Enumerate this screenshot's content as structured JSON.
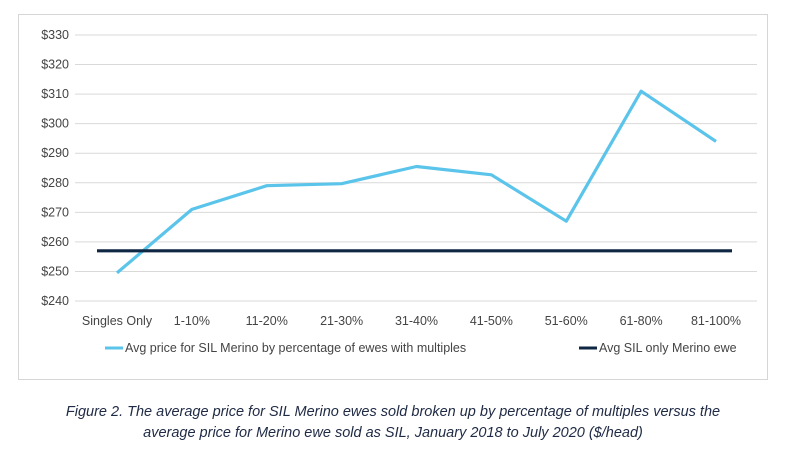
{
  "chart_data": {
    "type": "line",
    "categories": [
      "Singles Only",
      "1-10%",
      "11-20%",
      "21-30%",
      "31-40%",
      "41-50%",
      "51-60%",
      "61-80%",
      "81-100%"
    ],
    "series": [
      {
        "name": "Avg price for SIL Merino by percentage of ewes with multiples",
        "values": [
          249.5,
          271,
          279,
          279.7,
          285.5,
          282.7,
          267,
          311,
          294
        ],
        "color": "#5bc4ea"
      },
      {
        "name": "Avg SIL only Merino ewe",
        "values": [
          257,
          257,
          257,
          257,
          257,
          257,
          257,
          257,
          257
        ],
        "color": "#0f2742"
      }
    ],
    "yticks": [
      "$240",
      "$250",
      "$260",
      "$270",
      "$280",
      "$290",
      "$300",
      "$310",
      "$320",
      "$330"
    ],
    "ylim": [
      240,
      330
    ],
    "grid": true,
    "legend_position": "bottom"
  },
  "caption": {
    "line1": "Figure 2. The average price for SIL Merino ewes sold broken up by percentage of multiples versus the",
    "line2": "average price for Merino ewe sold as SIL, January 2018 to July 2020 ($/head)"
  }
}
